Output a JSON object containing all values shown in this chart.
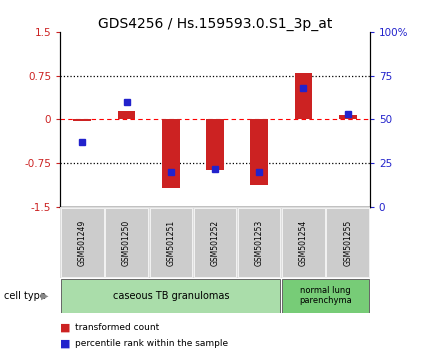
{
  "title": "GDS4256 / Hs.159593.0.S1_3p_at",
  "samples": [
    "GSM501249",
    "GSM501250",
    "GSM501251",
    "GSM501252",
    "GSM501253",
    "GSM501254",
    "GSM501255"
  ],
  "transformed_count": [
    -0.02,
    0.15,
    -1.18,
    -0.87,
    -1.12,
    0.8,
    0.08
  ],
  "percentile_rank": [
    37,
    60,
    20,
    22,
    20,
    68,
    53
  ],
  "ylim_left": [
    -1.5,
    1.5
  ],
  "ylim_right": [
    0,
    100
  ],
  "yticks_left": [
    -1.5,
    -0.75,
    0,
    0.75,
    1.5
  ],
  "yticks_right": [
    0,
    25,
    50,
    75,
    100
  ],
  "ytick_labels_left": [
    "-1.5",
    "-0.75",
    "0",
    "0.75",
    "1.5"
  ],
  "ytick_labels_right": [
    "0",
    "25",
    "50",
    "75",
    "100%"
  ],
  "bar_color": "#CC2222",
  "square_color": "#2222CC",
  "group1_indices": [
    0,
    1,
    2,
    3,
    4
  ],
  "group2_indices": [
    5,
    6
  ],
  "group1_label": "caseous TB granulomas",
  "group2_label": "normal lung\nparenchyma",
  "group1_color": "#AADDAA",
  "group2_color": "#77CC77",
  "legend_bar_label": "transformed count",
  "legend_square_label": "percentile rank within the sample",
  "cell_type_label": "cell type",
  "background_color": "#ffffff",
  "tick_label_color_left": "#CC2222",
  "tick_label_color_right": "#2222CC",
  "title_fontsize": 10,
  "bar_width": 0.4,
  "sample_box_color": "#cccccc",
  "sample_box_edge": "#aaaaaa"
}
